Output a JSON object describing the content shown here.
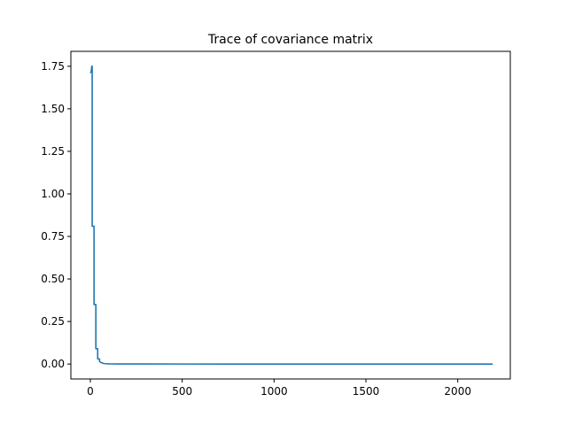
{
  "chart_data": {
    "type": "line",
    "title": "Trace of covariance matrix",
    "xlabel": "",
    "ylabel": "",
    "xlim": [
      -106,
      2286
    ],
    "ylim": [
      -0.0877,
      1.8377
    ],
    "x_ticks": [
      0,
      500,
      1000,
      1500,
      2000
    ],
    "x_tick_labels": [
      "0",
      "500",
      "1000",
      "1500",
      "2000"
    ],
    "y_ticks": [
      0.0,
      0.25,
      0.5,
      0.75,
      1.0,
      1.25,
      1.5,
      1.75
    ],
    "y_tick_labels": [
      "0.00",
      "0.25",
      "0.50",
      "0.75",
      "1.00",
      "1.25",
      "1.50",
      "1.75"
    ],
    "grid": false,
    "series": [
      {
        "color": "#1f77b4",
        "x": [
          0,
          5,
          8,
          10,
          10,
          20,
          20,
          30,
          30,
          40,
          40,
          50,
          50,
          60,
          70,
          80,
          100,
          150,
          300,
          500,
          1000,
          1500,
          2000,
          2190
        ],
        "y": [
          1.71,
          1.72,
          1.75,
          1.75,
          0.81,
          0.81,
          0.35,
          0.35,
          0.09,
          0.09,
          0.03,
          0.03,
          0.015,
          0.008,
          0.004,
          0.002,
          0.001,
          0.0005,
          0.0002,
          0.0001,
          0.0,
          0.0,
          0.0,
          0.0
        ]
      }
    ]
  }
}
